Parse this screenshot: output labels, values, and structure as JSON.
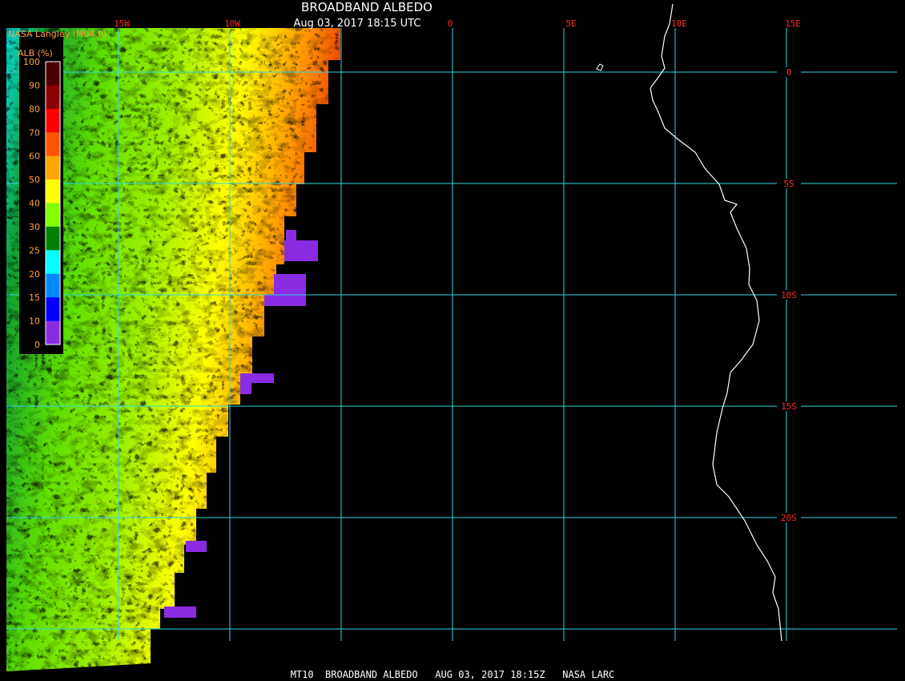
{
  "header": {
    "title": "BROADBAND ALBEDO",
    "timestamp": "Aug 03, 2017 18:15 UTC",
    "source": "NASA Langley (M04.0)"
  },
  "legend": {
    "title": "ALB (%)",
    "ticks": [
      100,
      90,
      80,
      70,
      60,
      50,
      40,
      30,
      25,
      20,
      15,
      10,
      0
    ],
    "colors": [
      "#4a0000",
      "#8b0000",
      "#ff0000",
      "#ff5500",
      "#ffa500",
      "#ffff00",
      "#80ff00",
      "#008000",
      "#00ffff",
      "#0088ff",
      "#0000ff",
      "#8a2be2"
    ]
  },
  "grid": {
    "longitudes": [
      "15W",
      "10W",
      "0",
      "5E",
      "10E",
      "15E"
    ],
    "latitudes": [
      "0",
      "5S",
      "10S",
      "15S",
      "20S"
    ]
  },
  "footer": {
    "caption": "MT10  BROADBAND ALBEDO   AUG 03, 2017 18:15Z   NASA LARC"
  }
}
